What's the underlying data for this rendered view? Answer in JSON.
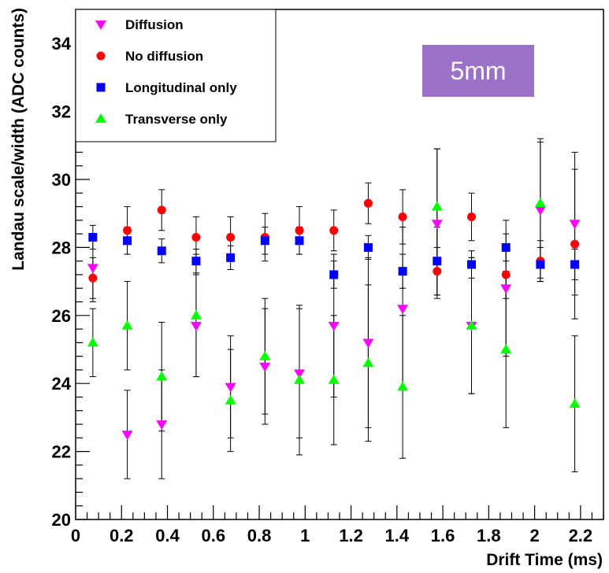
{
  "chart_data": {
    "type": "scatter",
    "title": "",
    "xlabel": "Drift Time (ms)",
    "ylabel": "Landau scale/width (ADC counts)",
    "xlim": [
      0,
      2.3
    ],
    "ylim": [
      20,
      35
    ],
    "grid": false,
    "legend_position": "top-left",
    "annotation": "5mm",
    "annotation_color": "#9b72c7",
    "x_ticks": [
      {
        "value": 0,
        "label": "0"
      },
      {
        "value": 0.2,
        "label": "0.2"
      },
      {
        "value": 0.4,
        "label": "0.4"
      },
      {
        "value": 0.6,
        "label": "0.6"
      },
      {
        "value": 0.8,
        "label": "0.8"
      },
      {
        "value": 1,
        "label": "1"
      },
      {
        "value": 1.2,
        "label": "1.2"
      },
      {
        "value": 1.4,
        "label": "1.4"
      },
      {
        "value": 1.6,
        "label": "1.6"
      },
      {
        "value": 1.8,
        "label": "1.8"
      },
      {
        "value": 2,
        "label": "2"
      },
      {
        "value": 2.2,
        "label": "2.2"
      }
    ],
    "y_ticks": [
      {
        "value": 20,
        "label": "20"
      },
      {
        "value": 22,
        "label": "22"
      },
      {
        "value": 24,
        "label": "24"
      },
      {
        "value": 26,
        "label": "26"
      },
      {
        "value": 28,
        "label": "28"
      },
      {
        "value": 30,
        "label": "30"
      },
      {
        "value": 32,
        "label": "32"
      },
      {
        "value": 34,
        "label": "34"
      }
    ],
    "x": [
      0.075,
      0.225,
      0.375,
      0.525,
      0.675,
      0.825,
      0.975,
      1.125,
      1.275,
      1.425,
      1.575,
      1.725,
      1.875,
      2.025,
      2.175
    ],
    "series": [
      {
        "name": "Diffusion",
        "marker": "triangle-down",
        "color": "#ff00ff",
        "y": [
          27.4,
          22.5,
          22.8,
          25.7,
          23.9,
          24.5,
          24.3,
          25.7,
          25.2,
          26.2,
          28.7,
          25.7,
          26.8,
          29.1,
          28.7
        ],
        "err": [
          1.0,
          1.3,
          1.6,
          1.5,
          1.5,
          1.7,
          1.9,
          2.1,
          2.5,
          2.4,
          2.2,
          2.0,
          2.0,
          2.0,
          2.1
        ]
      },
      {
        "name": "No diffusion",
        "marker": "circle",
        "color": "#ff0000",
        "y": [
          27.1,
          28.5,
          29.1,
          28.3,
          28.3,
          28.3,
          28.5,
          28.5,
          29.3,
          28.9,
          27.3,
          28.9,
          27.2,
          27.6,
          28.1
        ],
        "err": [
          0.6,
          0.7,
          0.6,
          0.6,
          0.6,
          0.7,
          0.7,
          0.6,
          0.6,
          0.8,
          0.7,
          0.7,
          0.7,
          0.6,
          2.2
        ]
      },
      {
        "name": "Longitudinal only",
        "marker": "square",
        "color": "#0000ff",
        "y": [
          28.3,
          28.2,
          27.9,
          27.6,
          27.7,
          28.2,
          28.2,
          27.2,
          28.0,
          27.3,
          27.6,
          27.5,
          28.0,
          27.5,
          27.5
        ],
        "err": [
          0.35,
          0.4,
          0.35,
          0.35,
          0.35,
          0.4,
          0.4,
          0.4,
          0.35,
          0.5,
          1.0,
          0.4,
          0.4,
          0.5,
          0.45
        ]
      },
      {
        "name": "Transverse only",
        "marker": "triangle-up",
        "color": "#00ff00",
        "y": [
          25.2,
          25.7,
          24.2,
          26.0,
          23.5,
          24.8,
          24.1,
          24.1,
          24.6,
          23.9,
          29.2,
          25.7,
          25.0,
          29.3,
          23.4
        ],
        "err": [
          1.0,
          1.3,
          1.6,
          1.8,
          1.5,
          1.7,
          2.2,
          1.9,
          2.3,
          2.1,
          1.7,
          2.0,
          2.3,
          1.9,
          2.0
        ]
      }
    ]
  }
}
